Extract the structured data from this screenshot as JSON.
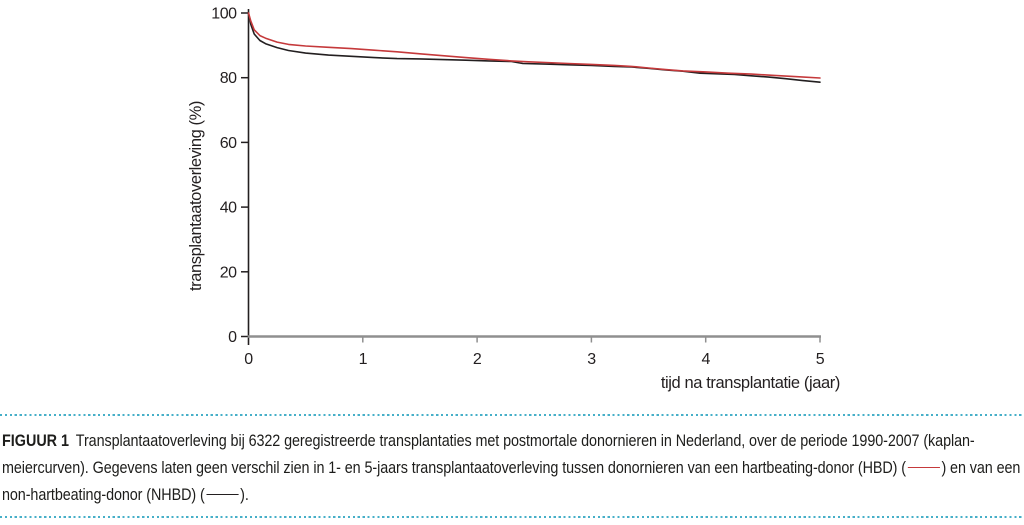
{
  "figure": {
    "caption": {
      "label": "FIGUUR 1",
      "border_color": "#46afc8",
      "segments": [
        {
          "type": "text",
          "text": "Transplantaatoverleving bij 6322 geregistreerde transplantaties met postmortale donornieren in Nederland, over de periode 1990-2007 (kaplan-meiercurven). Gegevens laten geen verschil zien in 1- en 5-jaars transplantaatoverleving tussen donornieren van een hartbeating-donor (HBD) ("
        },
        {
          "type": "swatch",
          "series": "HBD",
          "color": "#c5393b"
        },
        {
          "type": "text",
          "text": ") en van een non-hartbeating-donor (NHBD) ("
        },
        {
          "type": "swatch",
          "series": "NHBD",
          "color": "#231f20"
        },
        {
          "type": "text",
          "text": ")."
        }
      ]
    }
  },
  "chart_data": {
    "type": "line",
    "title": "",
    "xlabel": "tijd na transplantatie (jaar)",
    "ylabel": "transplantaatoverleving (%)",
    "xlim": [
      0,
      5
    ],
    "ylim": [
      0,
      100
    ],
    "xticks": [
      "0",
      "1",
      "2",
      "3",
      "4",
      "5"
    ],
    "yticks": [
      "0",
      "20",
      "40",
      "60",
      "80",
      "100"
    ],
    "grid": false,
    "legend_position": "in-caption",
    "axis_line_color": "#8f8f8f",
    "tick_text_color": "#231f20",
    "series": [
      {
        "name": "NHBD (non-hartbeating-donor)",
        "color": "#231f20",
        "points": [
          [
            0,
            100
          ],
          [
            0.02,
            96.5
          ],
          [
            0.05,
            93.5
          ],
          [
            0.1,
            91.5
          ],
          [
            0.15,
            90.5
          ],
          [
            0.25,
            89.3
          ],
          [
            0.35,
            88.4
          ],
          [
            0.5,
            87.6
          ],
          [
            0.7,
            87.0
          ],
          [
            0.9,
            86.6
          ],
          [
            1.1,
            86.2
          ],
          [
            1.3,
            85.9
          ],
          [
            1.5,
            85.8
          ],
          [
            1.7,
            85.6
          ],
          [
            1.9,
            85.4
          ],
          [
            2.1,
            85.2
          ],
          [
            2.3,
            85.0
          ],
          [
            2.4,
            84.4
          ],
          [
            2.6,
            84.2
          ],
          [
            2.8,
            84.0
          ],
          [
            3.0,
            83.8
          ],
          [
            3.2,
            83.5
          ],
          [
            3.35,
            83.3
          ],
          [
            3.5,
            82.9
          ],
          [
            3.65,
            82.4
          ],
          [
            3.8,
            82.0
          ],
          [
            3.95,
            81.4
          ],
          [
            4.1,
            81.2
          ],
          [
            4.25,
            81.0
          ],
          [
            4.4,
            80.6
          ],
          [
            4.55,
            80.2
          ],
          [
            4.7,
            79.7
          ],
          [
            4.85,
            79.1
          ],
          [
            5.0,
            78.6
          ]
        ]
      },
      {
        "name": "HBD (hartbeating-donor)",
        "color": "#c5393b",
        "points": [
          [
            0,
            100
          ],
          [
            0.02,
            97.5
          ],
          [
            0.05,
            94.8
          ],
          [
            0.1,
            93.0
          ],
          [
            0.15,
            92.2
          ],
          [
            0.25,
            91.0
          ],
          [
            0.35,
            90.3
          ],
          [
            0.5,
            89.8
          ],
          [
            0.7,
            89.4
          ],
          [
            0.9,
            89.0
          ],
          [
            1.1,
            88.5
          ],
          [
            1.3,
            88.0
          ],
          [
            1.5,
            87.4
          ],
          [
            1.7,
            86.8
          ],
          [
            1.9,
            86.2
          ],
          [
            2.1,
            85.7
          ],
          [
            2.3,
            85.2
          ],
          [
            2.45,
            84.9
          ],
          [
            2.6,
            84.7
          ],
          [
            2.8,
            84.4
          ],
          [
            3.0,
            84.1
          ],
          [
            3.2,
            83.8
          ],
          [
            3.35,
            83.5
          ],
          [
            3.5,
            83.0
          ],
          [
            3.65,
            82.5
          ],
          [
            3.8,
            82.1
          ],
          [
            4.0,
            81.8
          ],
          [
            4.2,
            81.4
          ],
          [
            4.4,
            81.1
          ],
          [
            4.6,
            80.7
          ],
          [
            4.8,
            80.3
          ],
          [
            5.0,
            79.9
          ]
        ]
      }
    ]
  }
}
